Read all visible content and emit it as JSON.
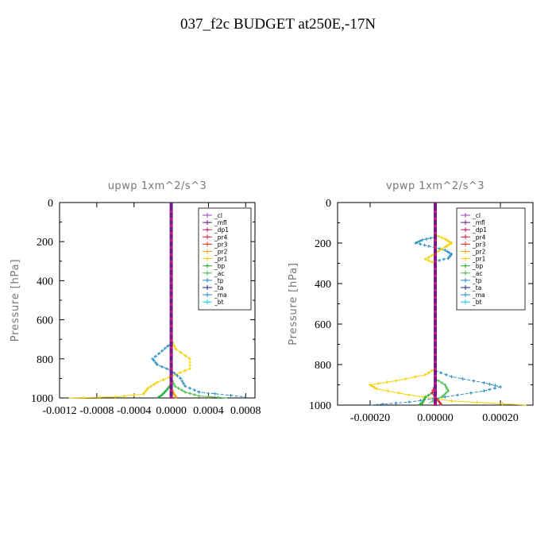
{
  "page_title": "037_f2c  BUDGET at250E,-17N",
  "colors": {
    "_cl": "#9b3fc6",
    "_mfl": "#6e1d88",
    "_dp1": "#c0207a",
    "_pr4": "#e0203a",
    "_pr3": "#e83020",
    "_pr2": "#f5a000",
    "_pr1": "#f5d000",
    "_bp": "#28b040",
    "_ac": "#50c050",
    "_tp": "#2a8fc0",
    "_ta": "#1a2a90",
    "_ma": "#2a90d0",
    "_bt": "#20d0e0"
  },
  "legend_labels": [
    "_cl",
    "_mfl",
    "_dp1",
    "_pr4",
    "_pr3",
    "_pr2",
    "_pr1",
    "_bp",
    "_ac",
    "_tp",
    "_ta",
    "_ma",
    "_bt"
  ],
  "chart_data": [
    {
      "type": "line",
      "title": "upwp   1xm^2/s^3",
      "ylabel": "Pressure  [hPa]",
      "xlabel": "",
      "xlim": [
        -0.0012,
        0.0009
      ],
      "ylim": [
        1000,
        0
      ],
      "xticks": [
        -0.0012,
        -0.0008,
        -0.0004,
        0.0,
        0.0004,
        0.0008
      ],
      "xtick_labels": [
        "-0.0012",
        "-0.0008",
        "-0.0004",
        "0.0000",
        "0.0004",
        "0.0008"
      ],
      "yticks": [
        0,
        200,
        400,
        600,
        800,
        1000
      ],
      "ytick_labels": [
        "0",
        "200",
        "400",
        "600",
        "800",
        "1000"
      ],
      "legend_position": "top-right",
      "series": [
        {
          "name": "_pr1",
          "p": [
            700,
            750,
            800,
            850,
            880,
            920,
            950,
            980,
            995,
            1000
          ],
          "x": [
            0,
            5e-05,
            0.0002,
            0.0002,
            5e-05,
            -0.00015,
            -0.00025,
            -0.0003,
            -0.0006,
            -0.0011
          ]
        },
        {
          "name": "_tp",
          "p": [
            720,
            760,
            800,
            830,
            860,
            900,
            940,
            970,
            995
          ],
          "x": [
            0,
            -0.0001,
            -0.0002,
            -0.00015,
            0,
            0.0001,
            0.00015,
            0.0003,
            0.0008
          ]
        },
        {
          "name": "_ac",
          "p": [
            900,
            940,
            970,
            990,
            1000
          ],
          "x": [
            0,
            4e-05,
            0.00015,
            0.0003,
            0.0006
          ]
        },
        {
          "name": "_bp",
          "p": [
            930,
            960,
            985,
            1000
          ],
          "x": [
            0,
            -5e-05,
            -0.0001,
            -0.00015
          ]
        },
        {
          "name": "_pr2",
          "p": [
            950,
            980,
            1000
          ],
          "x": [
            0,
            3e-05,
            6e-05
          ]
        },
        {
          "name": "_cl",
          "p": [
            0,
            1000
          ],
          "x": [
            0,
            0
          ]
        },
        {
          "name": "_mfl",
          "p": [
            0,
            1000
          ],
          "x": [
            0,
            0
          ]
        },
        {
          "name": "_dp1",
          "p": [
            0,
            1000
          ],
          "x": [
            0,
            0
          ]
        },
        {
          "name": "_pr4",
          "p": [
            0,
            1000
          ],
          "x": [
            0,
            0
          ]
        },
        {
          "name": "_pr3",
          "p": [
            0,
            1000
          ],
          "x": [
            0,
            0
          ]
        },
        {
          "name": "_ta",
          "p": [
            0,
            1000
          ],
          "x": [
            0,
            0
          ]
        },
        {
          "name": "_ma",
          "p": [
            0,
            1000
          ],
          "x": [
            0,
            0
          ]
        },
        {
          "name": "_bt",
          "p": [
            0,
            1000
          ],
          "x": [
            0,
            0
          ]
        }
      ]
    },
    {
      "type": "line",
      "title": "vpwp   1xm^2/s^3",
      "ylabel": "Pressure  [hPa]",
      "xlabel": "",
      "xlim": [
        -0.0003,
        0.0003
      ],
      "ylim": [
        1000,
        0
      ],
      "xticks": [
        -0.0002,
        0.0,
        0.0002
      ],
      "xtick_labels": [
        "-0.00020",
        "0.00000",
        "0.00020"
      ],
      "yticks": [
        0,
        200,
        400,
        600,
        800,
        1000
      ],
      "ytick_labels": [
        "0",
        "200",
        "400",
        "600",
        "800",
        "1000"
      ],
      "legend_position": "top-right",
      "series": [
        {
          "name": "_tp",
          "p": [
            170,
            185,
            200,
            215,
            235,
            255,
            275,
            290
          ],
          "x": [
            0,
            -4e-05,
            -6e-05,
            -2e-05,
            3e-05,
            5e-05,
            4e-05,
            0
          ]
        },
        {
          "name": "_pr1",
          "p": [
            160,
            180,
            200,
            220,
            250,
            280,
            300
          ],
          "x": [
            0,
            3e-05,
            5e-05,
            3e-05,
            0,
            -3e-05,
            0
          ]
        },
        {
          "name": "_pr1",
          "p": [
            820,
            850,
            880,
            900,
            920,
            950,
            980,
            1000
          ],
          "x": [
            0,
            -3e-05,
            -0.00012,
            -0.0002,
            -0.00018,
            -8e-05,
            5e-05,
            0.00028
          ]
        },
        {
          "name": "_tp",
          "p": [
            830,
            860,
            890,
            910,
            930,
            960,
            985,
            1000
          ],
          "x": [
            0,
            5e-05,
            0.00015,
            0.0002,
            0.00015,
            3e-05,
            -8e-05,
            -0.0002
          ]
        },
        {
          "name": "_ac",
          "p": [
            870,
            900,
            930,
            960,
            990
          ],
          "x": [
            0,
            3e-05,
            4e-05,
            2e-05,
            -2e-05
          ]
        },
        {
          "name": "_bp",
          "p": [
            930,
            960,
            990,
            1000
          ],
          "x": [
            0,
            -3e-05,
            -4e-05,
            -5e-05
          ]
        },
        {
          "name": "_pr4",
          "p": [
            900,
            940,
            980,
            1000
          ],
          "x": [
            0,
            -1e-05,
            1e-05,
            2e-05
          ]
        },
        {
          "name": "_cl",
          "p": [
            0,
            1000
          ],
          "x": [
            0,
            0
          ]
        },
        {
          "name": "_mfl",
          "p": [
            0,
            1000
          ],
          "x": [
            0,
            0
          ]
        },
        {
          "name": "_dp1",
          "p": [
            0,
            1000
          ],
          "x": [
            0,
            0
          ]
        },
        {
          "name": "_pr3",
          "p": [
            0,
            1000
          ],
          "x": [
            0,
            0
          ]
        },
        {
          "name": "_pr2",
          "p": [
            0,
            1000
          ],
          "x": [
            0,
            0
          ]
        },
        {
          "name": "_ta",
          "p": [
            0,
            1000
          ],
          "x": [
            0,
            0
          ]
        },
        {
          "name": "_ma",
          "p": [
            0,
            1000
          ],
          "x": [
            0,
            0
          ]
        },
        {
          "name": "_bt",
          "p": [
            0,
            1000
          ],
          "x": [
            0,
            0
          ]
        }
      ]
    }
  ]
}
